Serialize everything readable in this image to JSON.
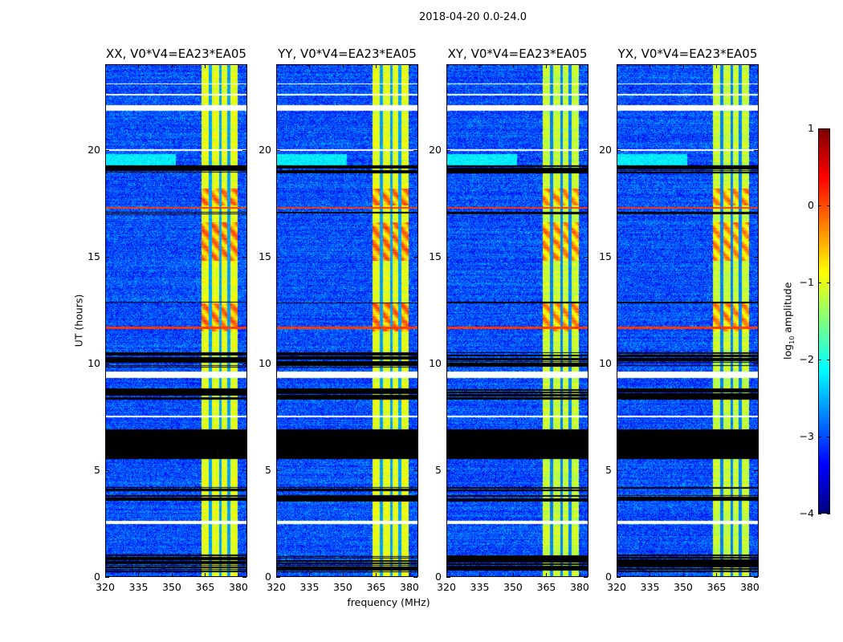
{
  "suptitle": "2018-04-20 0.0-24.0",
  "xlabel": "frequency (MHz)",
  "ylabel": "UT (hours)",
  "colorbar": {
    "label_prefix": "log",
    "label_sub": "10",
    "label_suffix": " amplitude",
    "ticks": [
      "1",
      "0",
      "−1",
      "−2",
      "−3",
      "−4"
    ],
    "tick_values": [
      1,
      0,
      -1,
      -2,
      -3,
      -4
    ],
    "range": [
      -4,
      1
    ],
    "colormap": "jet"
  },
  "chart_data": {
    "type": "heatmap",
    "title": "2018-04-20 0.0-24.0",
    "xlabel": "frequency (MHz)",
    "ylabel": "UT (hours)",
    "xlim": [
      320,
      384
    ],
    "ylim": [
      0,
      24
    ],
    "xticks": [
      "320",
      "335",
      "350",
      "365",
      "380"
    ],
    "xtick_values": [
      320,
      335,
      350,
      365,
      380
    ],
    "yticks": [
      "0",
      "5",
      "10",
      "15",
      "20"
    ],
    "ytick_values": [
      0,
      5,
      10,
      15,
      20
    ],
    "panels": [
      {
        "title": "XX, V0*V4=EA23*EA05"
      },
      {
        "title": "YY, V0*V4=EA23*EA05"
      },
      {
        "title": "XY, V0*V4=EA23*EA05"
      },
      {
        "title": "YX, V0*V4=EA23*EA05"
      }
    ],
    "background_log_amplitude": -3.0,
    "rfi_band_mhz": [
      363.5,
      380
    ],
    "rfi_band_log_amplitude": -1.0,
    "rfi_band_gaps_mhz": [
      367.5,
      372,
      376
    ],
    "strong_rfi_hours": [
      [
        11.5,
        12.8
      ],
      [
        14.8,
        16.6
      ],
      [
        17.4,
        18.2
      ]
    ],
    "flagged_blank_hours": [
      [
        2.45,
        2.6
      ],
      [
        7.45,
        7.55
      ],
      [
        9.3,
        9.6
      ],
      [
        19.95,
        20.05
      ],
      [
        21.85,
        22.1
      ],
      [
        22.55,
        22.65
      ],
      [
        23.1,
        23.15
      ]
    ],
    "flagged_black_hours": [
      [
        5.5,
        6.9
      ],
      [
        8.3,
        8.8
      ],
      [
        9.8,
        10.5
      ],
      [
        3.5,
        3.8
      ],
      [
        0.2,
        1.0
      ],
      [
        4.0,
        4.2
      ],
      [
        18.9,
        19.3
      ],
      [
        12.8,
        12.9
      ],
      [
        17.0,
        17.1
      ]
    ]
  }
}
